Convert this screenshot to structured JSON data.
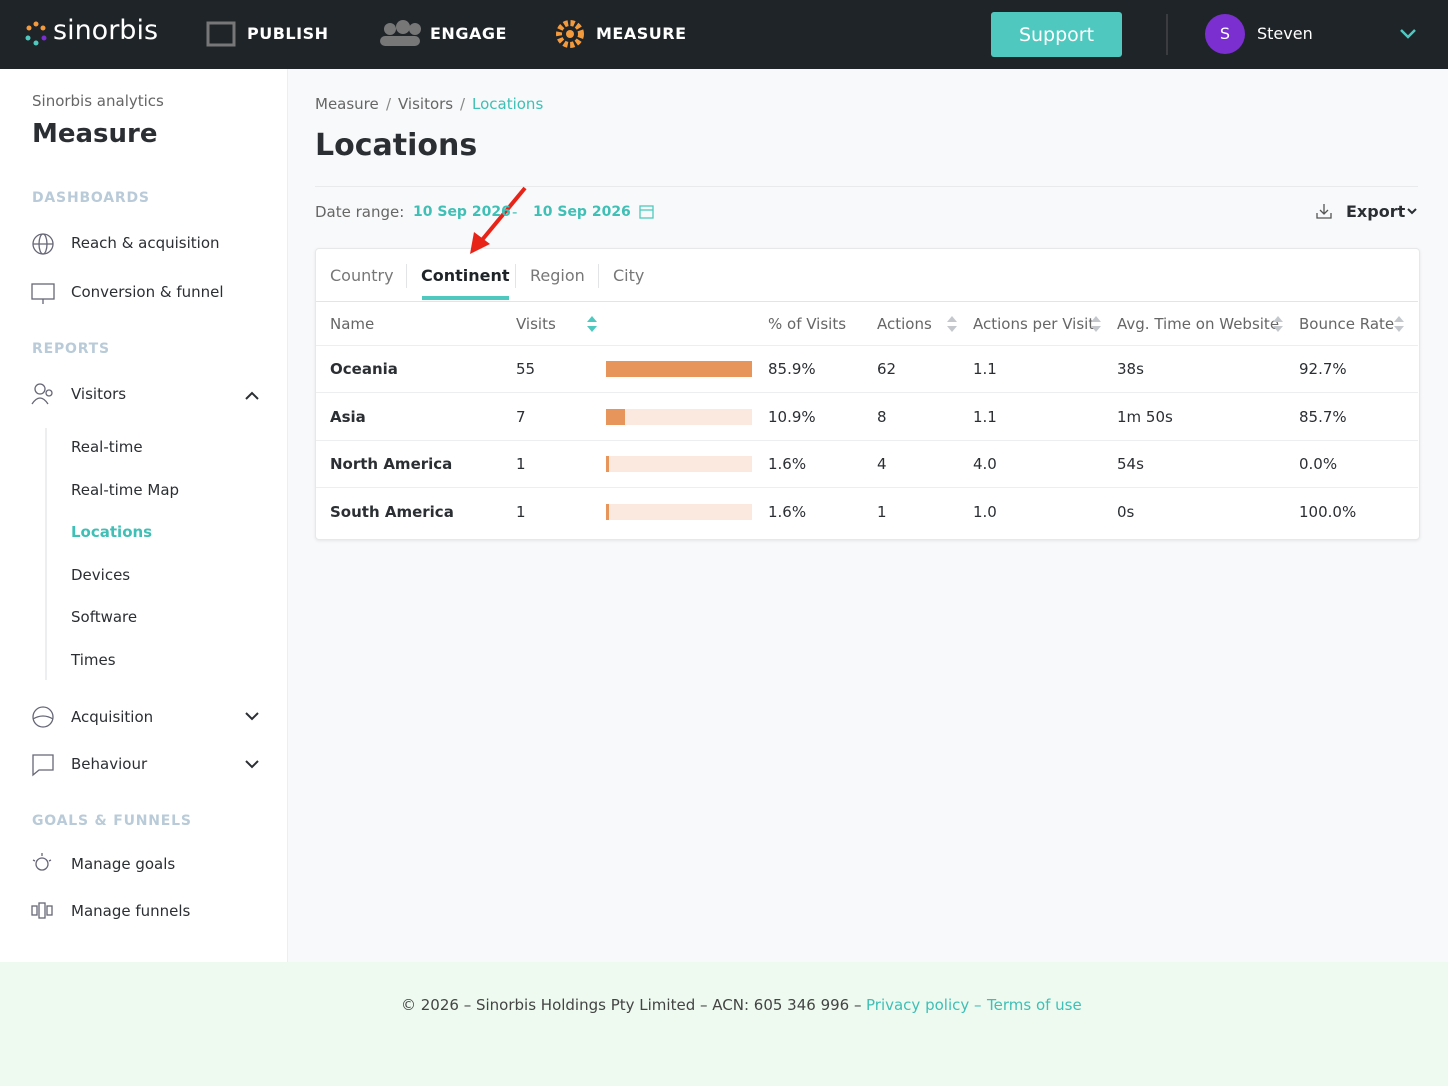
{
  "header": {
    "logo": "sinorbis",
    "nav": [
      "PUBLISH",
      "ENGAGE",
      "MEASURE"
    ],
    "support": "Support",
    "avatar": "S",
    "user": "Steven"
  },
  "sidebar": {
    "subtitle": "Sinorbis analytics",
    "title": "Measure",
    "dashboards_heading": "DASHBOARDS",
    "dashboards": [
      "Reach & acquisition",
      "Conversion & funnel"
    ],
    "reports_heading": "REPORTS",
    "visitors": "Visitors",
    "visitors_items": [
      "Real-time",
      "Real-time Map",
      "Locations",
      "Devices",
      "Software",
      "Times"
    ],
    "acquisition": "Acquisition",
    "behaviour": "Behaviour",
    "goals_heading": "GOALS & FUNNELS",
    "goals": [
      "Manage goals",
      "Manage funnels"
    ]
  },
  "main": {
    "breadcrumb": [
      "Measure",
      "Visitors",
      "Locations"
    ],
    "breadcrumb_separator": "/",
    "title": "Locations",
    "date_label": "Date range:",
    "date_from": "10 Sep 2026",
    "date_separator": "-",
    "date_to": "10 Sep 2026",
    "export": "Export",
    "tabs": [
      "Country",
      "Continent",
      "Region",
      "City"
    ],
    "active_tab": 1
  },
  "table": {
    "columns": [
      "Name",
      "Visits",
      "% of Visits",
      "Actions",
      "Actions per Visit",
      "Avg. Time on Website",
      "Bounce Rate"
    ],
    "rows": [
      [
        "Oceania",
        55,
        "85.9%",
        62,
        "1.1",
        "38s",
        "92.7%"
      ],
      [
        "Asia",
        7,
        "10.9%",
        8,
        "1.1",
        "1m 50s",
        "85.7%"
      ],
      [
        "North America",
        1,
        "1.6%",
        4,
        "4.0",
        "54s",
        "0.0%"
      ],
      [
        "South America",
        1,
        "1.6%",
        1,
        "1.0",
        "0s",
        "100.0%"
      ]
    ]
  },
  "footer": {
    "text": "© 2026 – Sinorbis Holdings Pty Limited – ACN: 605 346 996 –",
    "privacy": "Privacy policy",
    "separator": "–",
    "terms": "Terms of use"
  }
}
